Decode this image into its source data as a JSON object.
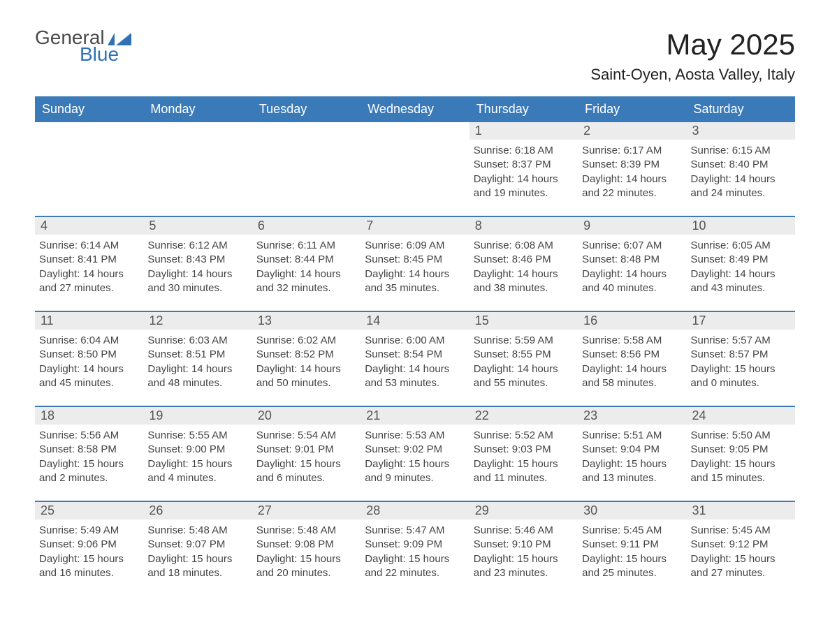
{
  "logo": {
    "word1": "General",
    "word2": "Blue",
    "icon_color": "#2f72b4"
  },
  "title": "May 2025",
  "location": "Saint-Oyen, Aosta Valley, Italy",
  "colors": {
    "header_bg": "#3a7ab8",
    "header_text": "#ffffff",
    "daynum_bg": "#ececec",
    "row_border": "#3a7ab8",
    "body_text": "#444444",
    "page_bg": "#ffffff"
  },
  "layout": {
    "columns": 7,
    "rows": 5,
    "first_day_column_index": 4
  },
  "day_labels": [
    "Sunday",
    "Monday",
    "Tuesday",
    "Wednesday",
    "Thursday",
    "Friday",
    "Saturday"
  ],
  "field_labels": {
    "sunrise": "Sunrise",
    "sunset": "Sunset",
    "daylight": "Daylight"
  },
  "days": [
    {
      "n": 1,
      "sunrise": "6:18 AM",
      "sunset": "8:37 PM",
      "daylight": "14 hours and 19 minutes."
    },
    {
      "n": 2,
      "sunrise": "6:17 AM",
      "sunset": "8:39 PM",
      "daylight": "14 hours and 22 minutes."
    },
    {
      "n": 3,
      "sunrise": "6:15 AM",
      "sunset": "8:40 PM",
      "daylight": "14 hours and 24 minutes."
    },
    {
      "n": 4,
      "sunrise": "6:14 AM",
      "sunset": "8:41 PM",
      "daylight": "14 hours and 27 minutes."
    },
    {
      "n": 5,
      "sunrise": "6:12 AM",
      "sunset": "8:43 PM",
      "daylight": "14 hours and 30 minutes."
    },
    {
      "n": 6,
      "sunrise": "6:11 AM",
      "sunset": "8:44 PM",
      "daylight": "14 hours and 32 minutes."
    },
    {
      "n": 7,
      "sunrise": "6:09 AM",
      "sunset": "8:45 PM",
      "daylight": "14 hours and 35 minutes."
    },
    {
      "n": 8,
      "sunrise": "6:08 AM",
      "sunset": "8:46 PM",
      "daylight": "14 hours and 38 minutes."
    },
    {
      "n": 9,
      "sunrise": "6:07 AM",
      "sunset": "8:48 PM",
      "daylight": "14 hours and 40 minutes."
    },
    {
      "n": 10,
      "sunrise": "6:05 AM",
      "sunset": "8:49 PM",
      "daylight": "14 hours and 43 minutes."
    },
    {
      "n": 11,
      "sunrise": "6:04 AM",
      "sunset": "8:50 PM",
      "daylight": "14 hours and 45 minutes."
    },
    {
      "n": 12,
      "sunrise": "6:03 AM",
      "sunset": "8:51 PM",
      "daylight": "14 hours and 48 minutes."
    },
    {
      "n": 13,
      "sunrise": "6:02 AM",
      "sunset": "8:52 PM",
      "daylight": "14 hours and 50 minutes."
    },
    {
      "n": 14,
      "sunrise": "6:00 AM",
      "sunset": "8:54 PM",
      "daylight": "14 hours and 53 minutes."
    },
    {
      "n": 15,
      "sunrise": "5:59 AM",
      "sunset": "8:55 PM",
      "daylight": "14 hours and 55 minutes."
    },
    {
      "n": 16,
      "sunrise": "5:58 AM",
      "sunset": "8:56 PM",
      "daylight": "14 hours and 58 minutes."
    },
    {
      "n": 17,
      "sunrise": "5:57 AM",
      "sunset": "8:57 PM",
      "daylight": "15 hours and 0 minutes."
    },
    {
      "n": 18,
      "sunrise": "5:56 AM",
      "sunset": "8:58 PM",
      "daylight": "15 hours and 2 minutes."
    },
    {
      "n": 19,
      "sunrise": "5:55 AM",
      "sunset": "9:00 PM",
      "daylight": "15 hours and 4 minutes."
    },
    {
      "n": 20,
      "sunrise": "5:54 AM",
      "sunset": "9:01 PM",
      "daylight": "15 hours and 6 minutes."
    },
    {
      "n": 21,
      "sunrise": "5:53 AM",
      "sunset": "9:02 PM",
      "daylight": "15 hours and 9 minutes."
    },
    {
      "n": 22,
      "sunrise": "5:52 AM",
      "sunset": "9:03 PM",
      "daylight": "15 hours and 11 minutes."
    },
    {
      "n": 23,
      "sunrise": "5:51 AM",
      "sunset": "9:04 PM",
      "daylight": "15 hours and 13 minutes."
    },
    {
      "n": 24,
      "sunrise": "5:50 AM",
      "sunset": "9:05 PM",
      "daylight": "15 hours and 15 minutes."
    },
    {
      "n": 25,
      "sunrise": "5:49 AM",
      "sunset": "9:06 PM",
      "daylight": "15 hours and 16 minutes."
    },
    {
      "n": 26,
      "sunrise": "5:48 AM",
      "sunset": "9:07 PM",
      "daylight": "15 hours and 18 minutes."
    },
    {
      "n": 27,
      "sunrise": "5:48 AM",
      "sunset": "9:08 PM",
      "daylight": "15 hours and 20 minutes."
    },
    {
      "n": 28,
      "sunrise": "5:47 AM",
      "sunset": "9:09 PM",
      "daylight": "15 hours and 22 minutes."
    },
    {
      "n": 29,
      "sunrise": "5:46 AM",
      "sunset": "9:10 PM",
      "daylight": "15 hours and 23 minutes."
    },
    {
      "n": 30,
      "sunrise": "5:45 AM",
      "sunset": "9:11 PM",
      "daylight": "15 hours and 25 minutes."
    },
    {
      "n": 31,
      "sunrise": "5:45 AM",
      "sunset": "9:12 PM",
      "daylight": "15 hours and 27 minutes."
    }
  ]
}
